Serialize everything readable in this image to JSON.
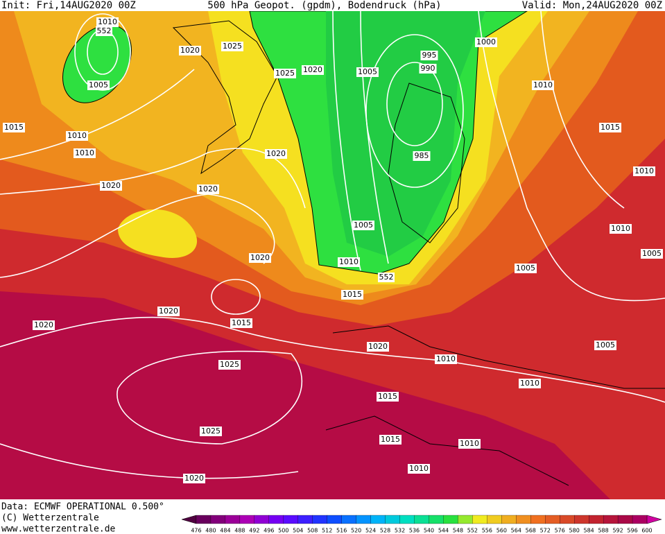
{
  "header": {
    "init": "Init: Fri,14AUG2020 00Z",
    "title": "500 hPa Geopot. (gpdm), Bodendruck (hPa)",
    "valid": "Valid: Mon,24AUG2020 00Z"
  },
  "isobar_labels": [
    "1010",
    "1020",
    "1025",
    "1005",
    "1015",
    "1010",
    "1010",
    "1020",
    "1025",
    "1020",
    "1005",
    "1000",
    "995",
    "990",
    "1010",
    "1015",
    "985",
    "1020",
    "1020",
    "1010",
    "1005",
    "1010",
    "1005",
    "1020",
    "1010",
    "1005",
    "1015",
    "1020",
    "1015",
    "1020",
    "1020",
    "1005",
    "1010",
    "1025",
    "1010",
    "1015",
    "1025",
    "1015",
    "1010",
    "1010",
    "1020"
  ],
  "height_labels": [
    "552",
    "552"
  ],
  "footer": {
    "data": "Data: ECMWF OPERATIONAL 0.500°",
    "copyright": "(C) Wetterzentrale",
    "url": "www.wetterzentrale.de"
  },
  "colorbar": {
    "levels": [
      "476",
      "480",
      "484",
      "488",
      "492",
      "496",
      "500",
      "504",
      "508",
      "512",
      "516",
      "520",
      "524",
      "528",
      "532",
      "536",
      "540",
      "544",
      "548",
      "552",
      "556",
      "560",
      "564",
      "568",
      "572",
      "576",
      "580",
      "584",
      "588",
      "592",
      "596",
      "600"
    ]
  }
}
